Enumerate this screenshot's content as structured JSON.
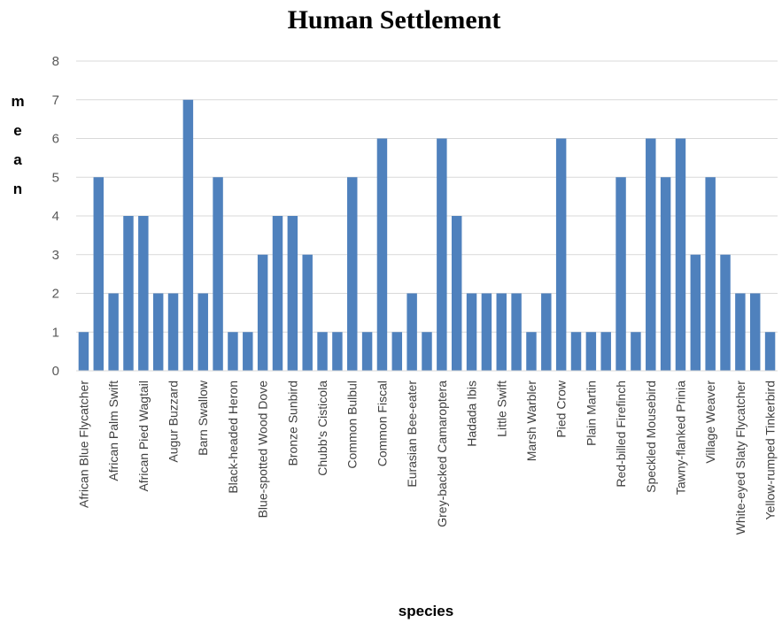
{
  "chart_data": {
    "type": "bar",
    "title": "Human Settlement",
    "xlabel": "species",
    "ylabel": "mean",
    "ylim": [
      0,
      8
    ],
    "yticks": [
      "0",
      "1",
      "2",
      "3",
      "4",
      "5",
      "6",
      "7",
      "8"
    ],
    "grid": true,
    "bar_color": "#4F81BD",
    "categories": [
      "African Blue Flycatcher",
      "",
      "African Palm Swift",
      "",
      "African Pied Wagtail",
      "",
      "Augur Buzzard",
      "",
      "Barn Swallow",
      "",
      "Black-headed Heron",
      "",
      "Blue-spotted Wood Dove",
      "",
      "Bronze Sunbird",
      "",
      "Chubb's Cisticola",
      "",
      "Common Bulbul",
      "",
      "Common Fiscal",
      "",
      "Eurasian Bee-eater",
      "",
      "Grey-backed Camaroptera",
      "",
      "Hadada Ibis",
      "",
      "Little Swift",
      "",
      "Marsh Warbler",
      "",
      "Pied Crow",
      "",
      "Plain Martin",
      "",
      "Red-billed Firefinch",
      "",
      "Speckled Mousebird",
      "",
      "Tawny-flanked Prinia",
      "",
      "Village Weaver",
      "",
      "White-eyed Slaty Flycatcher",
      "",
      "Yellow-rumped Tinkerbird"
    ],
    "values": [
      1,
      5,
      2,
      4,
      4,
      2,
      2,
      7,
      2,
      5,
      1,
      1,
      3,
      4,
      4,
      3,
      1,
      1,
      5,
      1,
      6,
      1,
      2,
      1,
      6,
      4,
      2,
      2,
      2,
      2,
      1,
      2,
      6,
      1,
      1,
      1,
      5,
      1,
      6,
      5,
      6,
      3,
      5,
      3,
      2,
      2,
      1
    ]
  }
}
